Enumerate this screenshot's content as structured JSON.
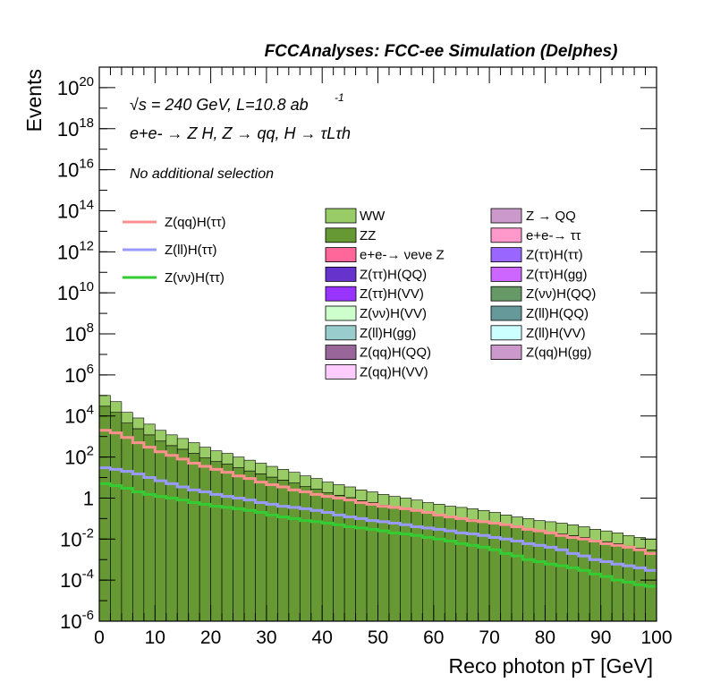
{
  "chart_data": {
    "type": "bar",
    "title": "FCCAnalyses: FCC-ee Simulation (Delphes)",
    "annotations": {
      "energy_label": "√s = 240 GeV, L=10.8 ab",
      "energy_exponent": "-1",
      "process_label": "e+e- → Z H, Z → qq, H → τLτh",
      "selection_label": "No additional selection"
    },
    "xlabel": "Reco photon pT [GeV]",
    "ylabel": "Events",
    "xlim": [
      0,
      100
    ],
    "ylim": [
      1e-06,
      1e+21
    ],
    "log_y": true,
    "x_ticks": [
      "0",
      "10",
      "20",
      "30",
      "40",
      "50",
      "60",
      "70",
      "80",
      "90",
      "100"
    ],
    "y_ticks": [
      "10^-6",
      "10^-4",
      "10^-2",
      "1",
      "10^2",
      "10^4",
      "10^6",
      "10^8",
      "10^10",
      "10^12",
      "10^14",
      "10^16",
      "10^18",
      "10^20"
    ],
    "bin_width": 2,
    "stack_total": [
      100000.0,
      50000.0,
      15000.0,
      8000.0,
      4000.0,
      2000.0,
      1200.0,
      800,
      500,
      300,
      200,
      150,
      100,
      70,
      50,
      35,
      25,
      18,
      12,
      9,
      6,
      4.5,
      3.5,
      2.5,
      2,
      1.5,
      1.2,
      1,
      0.8,
      0.6,
      0.5,
      0.4,
      0.35,
      0.3,
      0.25,
      0.2,
      0.15,
      0.12,
      0.1,
      0.08,
      0.07,
      0.06,
      0.05,
      0.04,
      0.03,
      0.025,
      0.02,
      0.015,
      0.012,
      0.01
    ],
    "ww_share": 0.7,
    "zz_share": 0.1,
    "signal_series": [
      {
        "name": "Z(qq)H(ττ)",
        "color": "#ff9090",
        "values": [
          2000,
          1500,
          900,
          500,
          300,
          180,
          120,
          80,
          50,
          35,
          25,
          18,
          12,
          9,
          6,
          4.5,
          3.5,
          2.5,
          2,
          1.5,
          1.2,
          1,
          0.8,
          0.6,
          0.5,
          0.4,
          0.35,
          0.3,
          0.25,
          0.2,
          0.15,
          0.12,
          0.1,
          0.08,
          0.07,
          0.06,
          0.05,
          0.04,
          0.03,
          0.025,
          0.02,
          0.015,
          0.012,
          0.01,
          0.008,
          0.006,
          0.005,
          0.004,
          0.003,
          0.002
        ]
      },
      {
        "name": "Z(ll)H(ττ)",
        "color": "#9999ff",
        "values": [
          30,
          25,
          20,
          15,
          10,
          7,
          5,
          3.5,
          2.5,
          2,
          1.5,
          1.2,
          1,
          0.8,
          0.6,
          0.5,
          0.4,
          0.35,
          0.3,
          0.25,
          0.2,
          0.15,
          0.12,
          0.1,
          0.08,
          0.07,
          0.06,
          0.05,
          0.04,
          0.035,
          0.03,
          0.025,
          0.02,
          0.018,
          0.015,
          0.012,
          0.01,
          0.008,
          0.006,
          0.005,
          0.004,
          0.003,
          0.002,
          0.0015,
          0.001,
          0.0008,
          0.0006,
          0.0005,
          0.0004,
          0.0003
        ]
      },
      {
        "name": "Z(νν)H(ττ)",
        "color": "#33cc33",
        "values": [
          5,
          4,
          3,
          2,
          1.5,
          1.2,
          1,
          0.8,
          0.6,
          0.5,
          0.4,
          0.35,
          0.3,
          0.25,
          0.2,
          0.15,
          0.12,
          0.1,
          0.08,
          0.07,
          0.06,
          0.05,
          0.04,
          0.035,
          0.03,
          0.025,
          0.02,
          0.018,
          0.015,
          0.012,
          0.01,
          0.008,
          0.006,
          0.005,
          0.004,
          0.003,
          0.002,
          0.0015,
          0.001,
          0.0008,
          0.0006,
          0.0005,
          0.0004,
          0.0003,
          0.0002,
          0.00015,
          0.0001,
          8e-05,
          6e-05,
          5e-05
        ]
      }
    ],
    "legend_left": [
      {
        "label": "Z(qq)H(ττ)",
        "color": "#ff9090"
      },
      {
        "label": "Z(ll)H(ττ)",
        "color": "#9999ff"
      },
      {
        "label": "Z(νν)H(ττ)",
        "color": "#33cc33"
      }
    ],
    "legend_mid": [
      {
        "label": "WW",
        "color": "#99cc66"
      },
      {
        "label": "ZZ",
        "color": "#669933"
      },
      {
        "label": "e+e-→ νeνe Z",
        "color": "#ff6699"
      },
      {
        "label": "Z(ττ)H(QQ)",
        "color": "#6633cc"
      },
      {
        "label": "Z(ττ)H(VV)",
        "color": "#9933ff"
      },
      {
        "label": "Z(νν)H(VV)",
        "color": "#ccffcc"
      },
      {
        "label": "Z(ll)H(gg)",
        "color": "#99cccc"
      },
      {
        "label": "Z(qq)H(QQ)",
        "color": "#996699"
      },
      {
        "label": "Z(qq)H(VV)",
        "color": "#ffccff"
      }
    ],
    "legend_right": [
      {
        "label": "Z → QQ",
        "color": "#cc99cc"
      },
      {
        "label": "e+e-→ ττ",
        "color": "#ff99cc"
      },
      {
        "label": "Z(ττ)H(ττ)",
        "color": "#9966ff"
      },
      {
        "label": "Z(ττ)H(gg)",
        "color": "#cc66ff"
      },
      {
        "label": "Z(νν)H(QQ)",
        "color": "#669966"
      },
      {
        "label": "Z(ll)H(QQ)",
        "color": "#669999"
      },
      {
        "label": "Z(ll)H(VV)",
        "color": "#ccffff"
      },
      {
        "label": "Z(qq)H(gg)",
        "color": "#cc99cc"
      }
    ]
  }
}
